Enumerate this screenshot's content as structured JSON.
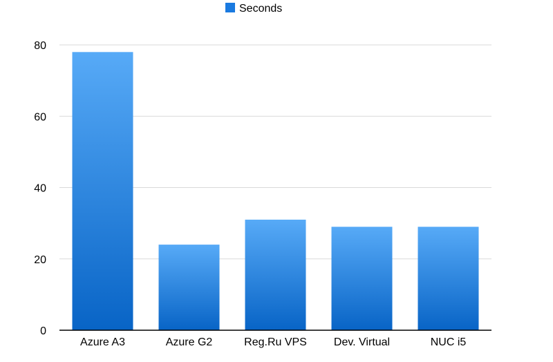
{
  "chart_data": {
    "type": "bar",
    "categories": [
      "Azure A3",
      "Azure G2",
      "Reg.Ru VPS",
      "Dev. Virtual",
      "NUC i5"
    ],
    "series": [
      {
        "name": "Seconds",
        "values": [
          78,
          24,
          31,
          29,
          29
        ]
      }
    ],
    "ylim": [
      0,
      80
    ],
    "yticks": [
      0,
      20,
      40,
      60,
      80
    ],
    "grid": true,
    "legend": "top-center",
    "colors": {
      "bar_top": "#57aaf7",
      "bar_bottom": "#0864c6",
      "legend_swatch": "#1a7ae0"
    }
  }
}
